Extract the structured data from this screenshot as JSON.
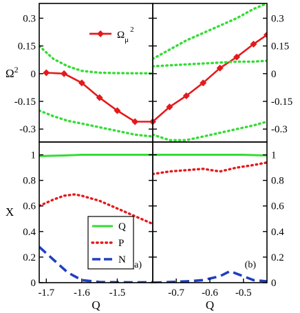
{
  "chart_data": [
    {
      "panel": "top-left",
      "type": "line",
      "ylabel": "Ω²",
      "xlim": [
        -1.72,
        -1.4
      ],
      "ylim": [
        -0.37,
        0.38
      ],
      "yticks": [
        -0.3,
        -0.15,
        0,
        0.15,
        0.3
      ],
      "ytick_labels": [
        "-0.3",
        "-0.15",
        "0",
        "0.15",
        "0.3"
      ],
      "legend": {
        "position": "top-right",
        "entries": [
          "Ω_μ²"
        ]
      },
      "series": [
        {
          "name": "Ω_μ²",
          "style": "solid-diamond",
          "color": "#e31a1c",
          "x": [
            -1.7,
            -1.65,
            -1.6,
            -1.55,
            -1.5,
            -1.45,
            -1.4
          ],
          "y": [
            0.005,
            0.0,
            -0.05,
            -0.13,
            -0.2,
            -0.26,
            -0.26
          ]
        },
        {
          "style": "dotted",
          "color": "#33dd33",
          "x": [
            -1.72,
            -1.68,
            -1.64,
            -1.6,
            -1.55,
            -1.5,
            -1.45,
            -1.4
          ],
          "y": [
            0.15,
            0.08,
            0.04,
            0.015,
            0.005,
            0.003,
            0.002,
            0.002
          ]
        },
        {
          "style": "dotted",
          "color": "#33dd33",
          "x": [
            -1.72,
            -1.68,
            -1.64,
            -1.6,
            -1.55,
            -1.5,
            -1.45,
            -1.4
          ],
          "y": [
            -0.2,
            -0.23,
            -0.255,
            -0.27,
            -0.29,
            -0.31,
            -0.33,
            -0.34
          ]
        }
      ]
    },
    {
      "panel": "top-right",
      "type": "line",
      "xlim": [
        -0.77,
        -0.43
      ],
      "ylim": [
        -0.37,
        0.38
      ],
      "yticks": [
        -0.3,
        -0.15,
        0,
        0.15,
        0.3
      ],
      "ytick_labels": [
        "-0.3",
        "-0.15",
        "0",
        "0.15",
        "0.3"
      ],
      "series": [
        {
          "name": "Ω_μ²",
          "style": "solid-diamond",
          "color": "#e31a1c",
          "x": [
            -0.77,
            -0.72,
            -0.67,
            -0.62,
            -0.57,
            -0.52,
            -0.47,
            -0.43
          ],
          "y": [
            -0.26,
            -0.18,
            -0.12,
            -0.05,
            0.03,
            0.09,
            0.16,
            0.21
          ]
        },
        {
          "style": "dotted",
          "color": "#33dd33",
          "x": [
            -0.77,
            -0.72,
            -0.67,
            -0.62,
            -0.57,
            -0.52,
            -0.47,
            -0.43
          ],
          "y": [
            0.08,
            0.13,
            0.18,
            0.22,
            0.26,
            0.3,
            0.35,
            0.38
          ]
        },
        {
          "style": "dotted",
          "color": "#33dd33",
          "x": [
            -0.77,
            -0.72,
            -0.67,
            -0.62,
            -0.57,
            -0.52,
            -0.47,
            -0.43
          ],
          "y": [
            0.04,
            0.045,
            0.05,
            0.055,
            0.06,
            0.065,
            0.065,
            0.07
          ]
        },
        {
          "style": "dotted",
          "color": "#33dd33",
          "x": [
            -0.77,
            -0.72,
            -0.67,
            -0.62,
            -0.57,
            -0.52,
            -0.47,
            -0.43
          ],
          "y": [
            -0.33,
            -0.36,
            -0.36,
            -0.34,
            -0.32,
            -0.3,
            -0.28,
            -0.26
          ]
        }
      ]
    },
    {
      "panel": "bottom-left",
      "type": "line",
      "xlabel": "Q",
      "ylabel": "X",
      "xlim": [
        -1.72,
        -1.4
      ],
      "ylim": [
        0,
        1.1
      ],
      "xticks": [
        -1.7,
        -1.6,
        -1.5
      ],
      "xtick_labels": [
        "-1.7",
        "-1.6",
        "-1.5"
      ],
      "yticks": [
        0,
        0.2,
        0.4,
        0.6,
        0.8,
        1
      ],
      "ytick_labels": [
        "0",
        "0.2",
        "0.4",
        "0.6",
        "0.8",
        "1"
      ],
      "tag": "(a)",
      "legend": {
        "position": "bottom-center",
        "entries": [
          "Q",
          "P",
          "N"
        ]
      },
      "series": [
        {
          "name": "Q",
          "style": "solid",
          "color": "#33dd33",
          "x": [
            -1.72,
            -1.65,
            -1.6,
            -1.55,
            -1.5,
            -1.45,
            -1.4
          ],
          "y": [
            0.99,
            0.995,
            1.0,
            1.0,
            1.0,
            1.0,
            1.0
          ]
        },
        {
          "name": "P",
          "style": "dotted",
          "color": "#e31a1c",
          "x": [
            -1.72,
            -1.68,
            -1.65,
            -1.62,
            -1.6,
            -1.55,
            -1.5,
            -1.45,
            -1.4
          ],
          "y": [
            0.6,
            0.65,
            0.68,
            0.69,
            0.68,
            0.64,
            0.58,
            0.52,
            0.46
          ]
        },
        {
          "name": "N",
          "style": "dashed",
          "color": "#1f3fbf",
          "x": [
            -1.72,
            -1.68,
            -1.64,
            -1.6,
            -1.55,
            -1.5,
            -1.45,
            -1.4
          ],
          "y": [
            0.28,
            0.18,
            0.08,
            0.02,
            0.005,
            0.003,
            0.002,
            0.003
          ]
        }
      ]
    },
    {
      "panel": "bottom-right",
      "type": "line",
      "xlabel": "Q",
      "xlim": [
        -0.77,
        -0.43
      ],
      "ylim": [
        0,
        1.1
      ],
      "xticks": [
        -0.7,
        -0.6,
        -0.5
      ],
      "xtick_labels": [
        "-0.7",
        "-0.6",
        "-0.5"
      ],
      "yticks": [
        0,
        0.2,
        0.4,
        0.6,
        0.8,
        1
      ],
      "ytick_labels": [
        "0",
        "0.2",
        "0.4",
        "0.6",
        "0.8",
        "1"
      ],
      "tag": "(b)",
      "series": [
        {
          "name": "Q",
          "style": "solid",
          "color": "#33dd33",
          "x": [
            -0.77,
            -0.7,
            -0.6,
            -0.5,
            -0.43
          ],
          "y": [
            1.0,
            1.0,
            1.0,
            1.0,
            0.995
          ]
        },
        {
          "name": "P",
          "style": "dotted",
          "color": "#e31a1c",
          "x": [
            -0.77,
            -0.72,
            -0.67,
            -0.62,
            -0.57,
            -0.52,
            -0.47,
            -0.43
          ],
          "y": [
            0.85,
            0.87,
            0.88,
            0.89,
            0.87,
            0.9,
            0.92,
            0.94
          ]
        },
        {
          "name": "N",
          "style": "dashed",
          "color": "#1f3fbf",
          "x": [
            -0.77,
            -0.72,
            -0.67,
            -0.62,
            -0.57,
            -0.54,
            -0.5,
            -0.47,
            -0.43
          ],
          "y": [
            0.0,
            0.005,
            0.01,
            0.02,
            0.05,
            0.09,
            0.05,
            0.02,
            0.01
          ]
        }
      ]
    }
  ]
}
